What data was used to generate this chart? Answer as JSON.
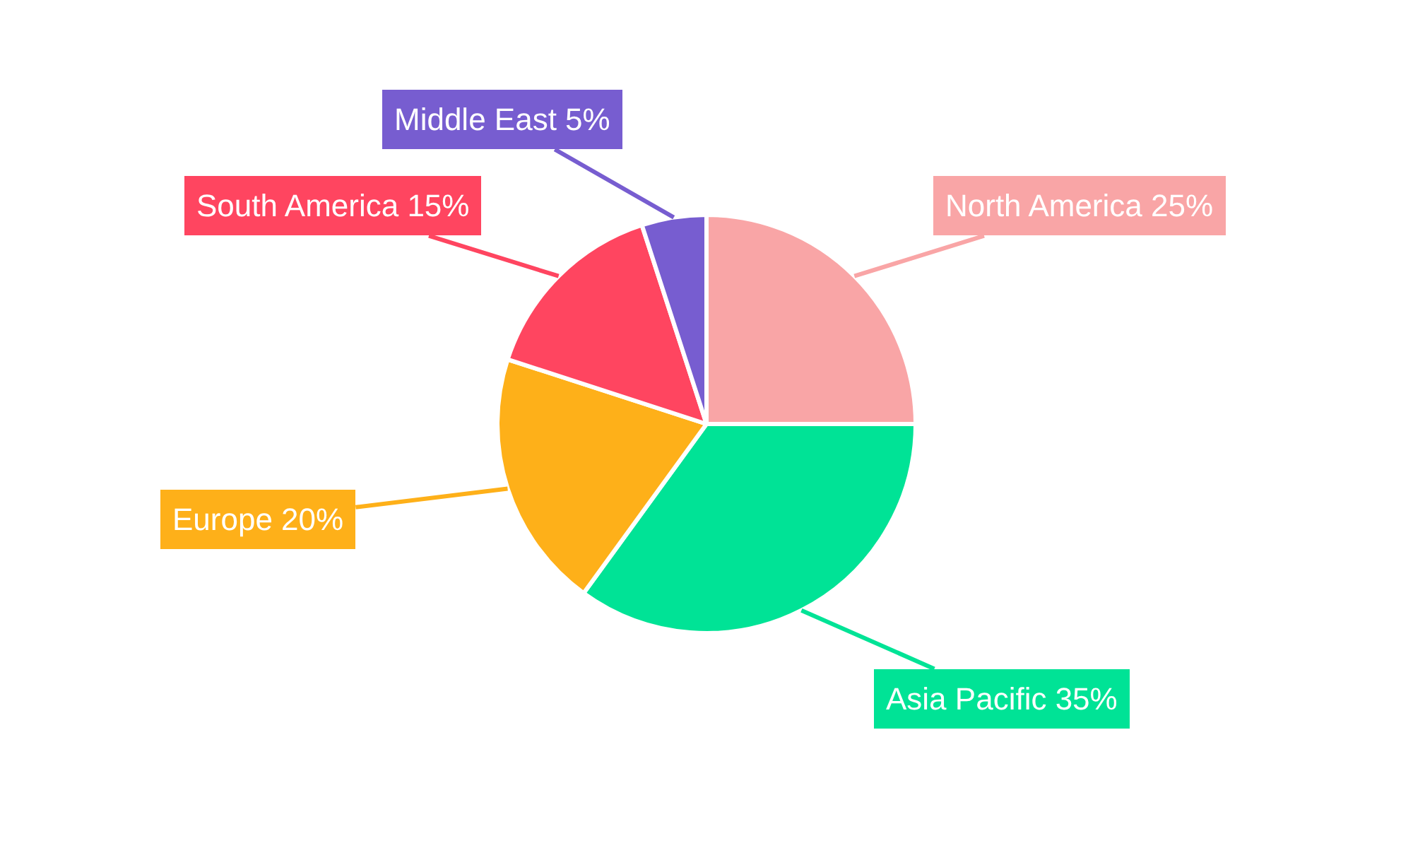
{
  "chart_data": {
    "type": "pie",
    "categories": [
      "North America",
      "Asia Pacific",
      "Europe",
      "South America",
      "Middle East"
    ],
    "values": [
      25,
      35,
      20,
      15,
      5
    ],
    "value_labels": [
      "25%",
      "35%",
      "20%",
      "15%",
      "5%"
    ],
    "colors": [
      "#f9a5a6",
      "#00e396",
      "#feb019",
      "#ff4560",
      "#775dd0"
    ],
    "legend": false
  }
}
